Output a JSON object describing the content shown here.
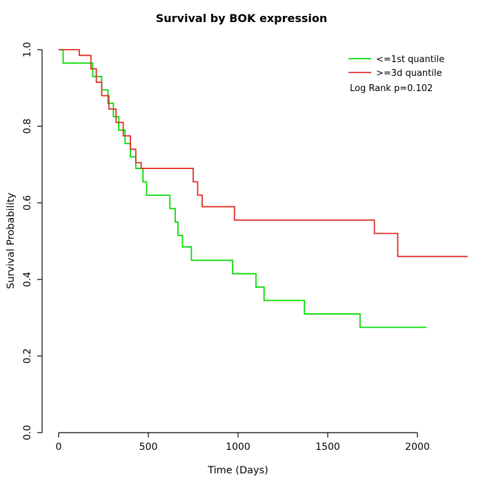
{
  "title": "Survival by BOK expression",
  "chart_data": {
    "type": "line",
    "subtype": "kaplan-meier-step",
    "title": "Survival by BOK expression",
    "xlabel": "Time (Days)",
    "ylabel": "Survival Probability",
    "xlim": [
      0,
      2300
    ],
    "ylim": [
      0.0,
      1.0
    ],
    "x_ticks": [
      0,
      500,
      1000,
      1500,
      2000
    ],
    "y_ticks": [
      0.0,
      0.2,
      0.4,
      0.6,
      0.8,
      1.0
    ],
    "grid": false,
    "legend_position": "top-right",
    "annotation": "Log Rank p=0.102",
    "series": [
      {
        "name": "<=1st quantile",
        "color": "#00DC00",
        "points": [
          [
            0,
            1.0
          ],
          [
            25,
            0.965
          ],
          [
            190,
            0.93
          ],
          [
            240,
            0.895
          ],
          [
            275,
            0.86
          ],
          [
            305,
            0.825
          ],
          [
            335,
            0.79
          ],
          [
            370,
            0.755
          ],
          [
            400,
            0.72
          ],
          [
            430,
            0.69
          ],
          [
            470,
            0.655
          ],
          [
            490,
            0.62
          ],
          [
            620,
            0.585
          ],
          [
            650,
            0.55
          ],
          [
            665,
            0.515
          ],
          [
            690,
            0.485
          ],
          [
            740,
            0.45
          ],
          [
            970,
            0.415
          ],
          [
            1100,
            0.38
          ],
          [
            1145,
            0.345
          ],
          [
            1370,
            0.31
          ],
          [
            1680,
            0.275
          ]
        ],
        "end_x": 2050
      },
      {
        "name": ">=3d quantile",
        "color": "#DE2D26",
        "points": [
          [
            0,
            1.0
          ],
          [
            115,
            0.985
          ],
          [
            180,
            0.95
          ],
          [
            210,
            0.915
          ],
          [
            240,
            0.88
          ],
          [
            280,
            0.845
          ],
          [
            320,
            0.81
          ],
          [
            360,
            0.775
          ],
          [
            400,
            0.74
          ],
          [
            430,
            0.705
          ],
          [
            460,
            0.69
          ],
          [
            750,
            0.655
          ],
          [
            775,
            0.62
          ],
          [
            800,
            0.59
          ],
          [
            980,
            0.555
          ],
          [
            1760,
            0.52
          ],
          [
            1890,
            0.46
          ]
        ],
        "end_x": 2280
      }
    ]
  }
}
